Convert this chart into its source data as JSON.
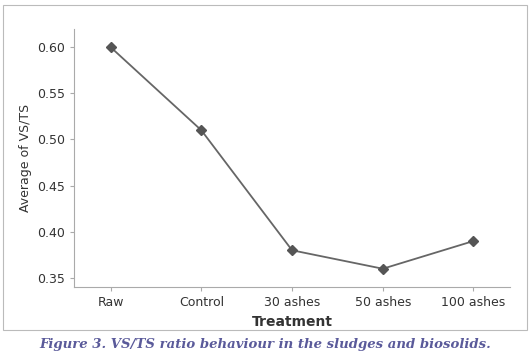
{
  "categories": [
    "Raw",
    "Control",
    "30 ashes",
    "50 ashes",
    "100 ashes"
  ],
  "values": [
    0.6,
    0.51,
    0.38,
    0.36,
    0.39
  ],
  "xlabel": "Treatment",
  "ylabel": "Average of VS/TS",
  "ylim": [
    0.34,
    0.62
  ],
  "yticks": [
    0.35,
    0.4,
    0.45,
    0.5,
    0.55,
    0.6
  ],
  "line_color": "#666666",
  "marker": "D",
  "marker_size": 5,
  "marker_color": "#555555",
  "line_width": 1.3,
  "caption": "Figure 3. VS/TS ratio behaviour in the sludges and biosolids.",
  "bg_color": "#ffffff",
  "spine_color": "#aaaaaa",
  "font_color": "#333333",
  "caption_color": "#5a5a9a",
  "xlabel_fontsize": 10,
  "ylabel_fontsize": 9,
  "tick_fontsize": 9,
  "caption_fontsize": 9.5
}
